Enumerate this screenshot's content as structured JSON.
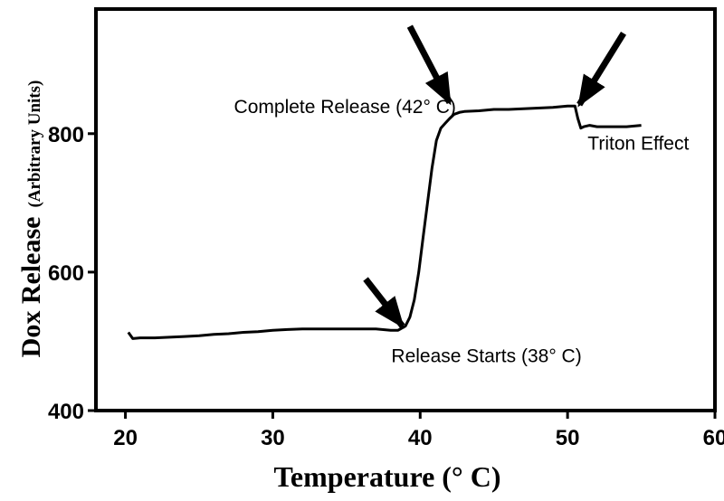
{
  "chart_data": {
    "type": "line",
    "title": "",
    "xlabel": "Temperature (° C)",
    "ylabel_main": "Dox Release",
    "ylabel_unit": "(Arbitrary Units)",
    "xlim": [
      18,
      60
    ],
    "ylim": [
      400,
      980
    ],
    "xticks": [
      20,
      30,
      40,
      50,
      60
    ],
    "yticks": [
      400,
      600,
      800
    ],
    "grid": false,
    "series": [
      {
        "color": "#000000",
        "x": [
          20.2,
          20.5,
          21,
          22,
          23,
          24,
          25,
          26,
          27,
          28,
          29,
          30,
          31,
          32,
          33,
          34,
          35,
          36,
          37,
          38,
          38.5,
          39,
          39.3,
          39.6,
          39.9,
          40.2,
          40.5,
          40.8,
          41.1,
          41.4,
          41.7,
          42,
          42.3,
          42.7,
          43,
          44,
          45,
          46,
          47,
          48,
          49,
          50,
          50.5,
          50.7,
          50.9,
          51.1,
          51.5,
          52,
          53,
          54,
          55
        ],
        "y": [
          513,
          504,
          505,
          505,
          506,
          507,
          508,
          510,
          511,
          513,
          514,
          516,
          517,
          518,
          518,
          518,
          518,
          518,
          518,
          516,
          516,
          522,
          535,
          560,
          600,
          650,
          700,
          750,
          790,
          808,
          815,
          822,
          828,
          831,
          832,
          833,
          835,
          835,
          836,
          837,
          838,
          840,
          840,
          822,
          808,
          810,
          812,
          810,
          810,
          810,
          812
        ]
      }
    ],
    "annotations": [
      {
        "text": "Complete Release (42° C)",
        "x": 34.9,
        "y": 830
      },
      {
        "text": "Triton Effect",
        "x": 54.8,
        "y": 777
      },
      {
        "text": "Release Starts (38° C)",
        "x": 44.5,
        "y": 470
      }
    ],
    "arrows": [
      {
        "from": [
          39.3,
          955
        ],
        "to": [
          42.0,
          845
        ]
      },
      {
        "from": [
          53.8,
          945
        ],
        "to": [
          50.8,
          842
        ]
      },
      {
        "from": [
          36.3,
          590
        ],
        "to": [
          38.8,
          522
        ]
      }
    ]
  }
}
